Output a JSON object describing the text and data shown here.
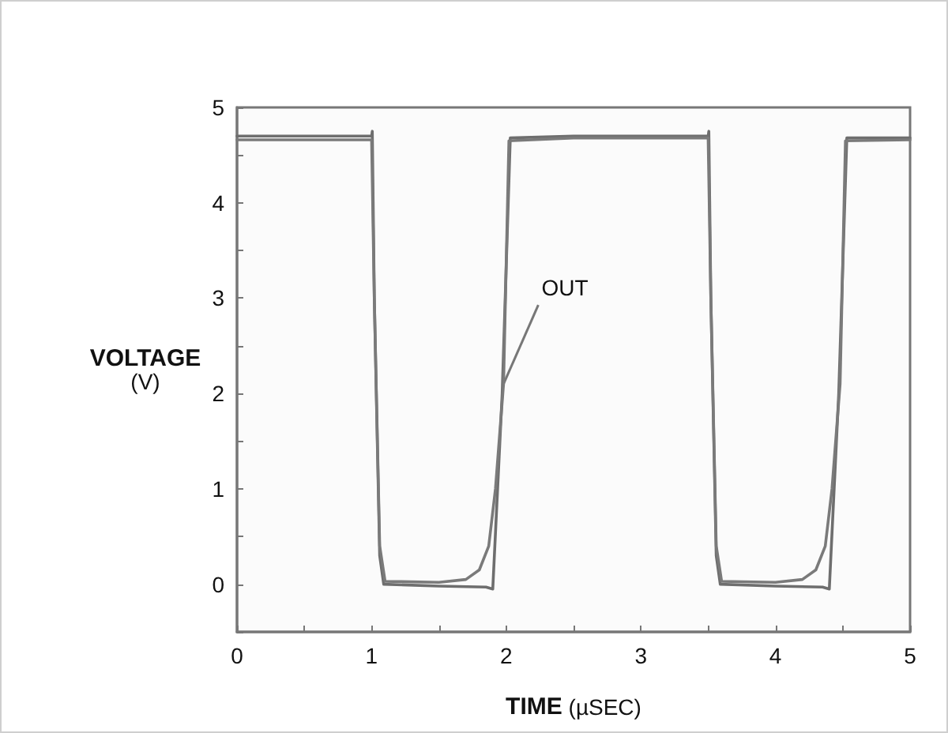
{
  "chart_data": {
    "type": "line",
    "xlabel": "TIME (µSEC)",
    "ylabel": "VOLTAGE (V)",
    "xlim": [
      0,
      5
    ],
    "ylim": [
      -0.5,
      5
    ],
    "xticks": [
      0,
      {
        "value": 0.5,
        "label": null
      },
      1,
      {
        "value": 1.5,
        "label": null
      },
      2,
      {
        "value": 2.5,
        "label": null
      },
      3,
      {
        "value": 3.5,
        "label": null
      },
      4,
      {
        "value": 4.5,
        "label": null
      },
      5
    ],
    "yticks": [
      {
        "value": -0.5,
        "label": null
      },
      0,
      {
        "value": 0.5,
        "label": null
      },
      1,
      {
        "value": 1.5,
        "label": null
      },
      2,
      {
        "value": 2.5,
        "label": null
      },
      3,
      {
        "value": 3.5,
        "label": null
      },
      4,
      {
        "value": 4.5,
        "label": null
      },
      5
    ],
    "grid": false,
    "marker": "none",
    "line_style": "solid",
    "series": [
      {
        "color": "#6e6e6e",
        "x": [
          0,
          1.0,
          1.005,
          1.02,
          1.06,
          1.09,
          1.5,
          1.85,
          1.9,
          1.97,
          2.03,
          2.5,
          3.5,
          3.505,
          3.52,
          3.56,
          3.59,
          4.0,
          4.35,
          4.4,
          4.47,
          4.53,
          5
        ],
        "values": [
          4.7,
          4.7,
          4.75,
          3,
          0.3,
          0.0,
          -0.02,
          -0.03,
          -0.05,
          2.0,
          4.68,
          4.7,
          4.7,
          4.75,
          3,
          0.3,
          0.0,
          -0.02,
          -0.03,
          -0.05,
          2.0,
          4.68,
          4.68
        ]
      },
      {
        "color": "#7a7a7a",
        "x": [
          0,
          1.0,
          1.02,
          1.06,
          1.1,
          1.5,
          1.7,
          1.8,
          1.87,
          1.92,
          1.98,
          2.02,
          2.5,
          3.5,
          3.52,
          3.56,
          3.6,
          4.0,
          4.2,
          4.3,
          4.37,
          4.42,
          4.48,
          4.52,
          5
        ],
        "values": [
          4.66,
          4.66,
          3,
          0.4,
          0.03,
          0.02,
          0.05,
          0.15,
          0.4,
          1.0,
          2.1,
          4.65,
          4.68,
          4.68,
          3,
          0.4,
          0.03,
          0.02,
          0.05,
          0.15,
          0.4,
          1.0,
          2.1,
          4.65,
          4.66
        ]
      }
    ],
    "annotations": [
      {
        "text": "OUT",
        "x": 1.98,
        "y": 2.1
      }
    ]
  }
}
